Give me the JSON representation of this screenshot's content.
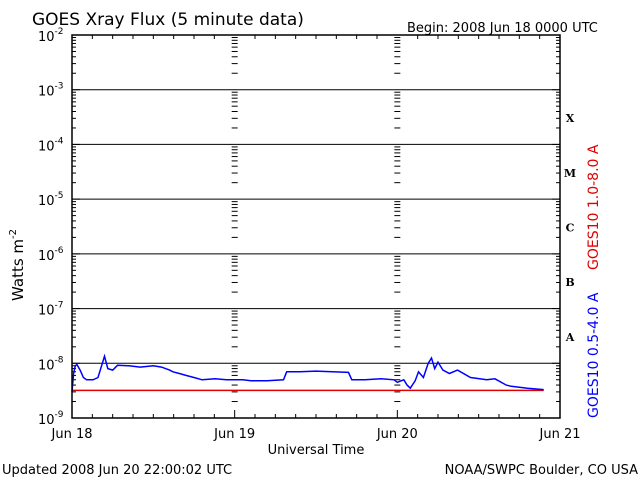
{
  "header": {
    "title": "GOES Xray Flux (5 minute data)",
    "begin": "Begin:  2008 Jun 18 0000 UTC"
  },
  "footer": {
    "updated": "Updated 2008 Jun 20 22:00:02 UTC",
    "credit": "NOAA/SWPC Boulder, CO USA"
  },
  "colors": {
    "long_channel": "#e00000",
    "short_channel": "#0000ff",
    "grid": "#000000"
  },
  "chart_data": {
    "type": "line",
    "title": "GOES Xray Flux (5 minute data)",
    "xlabel": "Universal Time",
    "ylabel": "Watts m",
    "ylabel_sup": "-2",
    "y_scale": "log",
    "ylim": [
      1e-09,
      0.01
    ],
    "xlim": [
      0,
      3
    ],
    "x_ticks": [
      {
        "x": 0,
        "label": "Jun 18"
      },
      {
        "x": 1,
        "label": "Jun 19"
      },
      {
        "x": 2,
        "label": "Jun 20"
      },
      {
        "x": 3,
        "label": "Jun 21"
      }
    ],
    "y_ticks": [
      {
        "exp": -2,
        "base": "10",
        "sup": "-2"
      },
      {
        "exp": -3,
        "base": "10",
        "sup": "-3"
      },
      {
        "exp": -4,
        "base": "10",
        "sup": "-4"
      },
      {
        "exp": -5,
        "base": "10",
        "sup": "-5"
      },
      {
        "exp": -6,
        "base": "10",
        "sup": "-6"
      },
      {
        "exp": -7,
        "base": "10",
        "sup": "-7"
      },
      {
        "exp": -8,
        "base": "10",
        "sup": "-8"
      },
      {
        "exp": -9,
        "base": "10",
        "sup": "-9"
      }
    ],
    "flare_classes": [
      {
        "label": "X",
        "exp": -3.5
      },
      {
        "label": "M",
        "exp": -4.5
      },
      {
        "label": "C",
        "exp": -5.5
      },
      {
        "label": "B",
        "exp": -6.5
      },
      {
        "label": "A",
        "exp": -7.5
      }
    ],
    "grid": true,
    "series": [
      {
        "name": "GOES10 1.0-8.0 A",
        "x": [
          0,
          0.95,
          1.0,
          2.0,
          2.9
        ],
        "y": [
          3.2e-09,
          3.2e-09,
          3.2e-09,
          3.2e-09,
          3.2e-09
        ]
      },
      {
        "name": "GOES10 0.5-4.0 A",
        "x": [
          0,
          0.01,
          0.02,
          0.03,
          0.05,
          0.07,
          0.09,
          0.1,
          0.13,
          0.16,
          0.2,
          0.22,
          0.25,
          0.28,
          0.35,
          0.42,
          0.5,
          0.55,
          0.6,
          0.62,
          0.66,
          0.7,
          0.75,
          0.8,
          0.88,
          0.95,
          1.0,
          1.05,
          1.1,
          1.2,
          1.3,
          1.32,
          1.4,
          1.5,
          1.6,
          1.7,
          1.72,
          1.8,
          1.9,
          1.98,
          2.0,
          2.04,
          2.06,
          2.08,
          2.11,
          2.13,
          2.16,
          2.19,
          2.21,
          2.23,
          2.25,
          2.28,
          2.32,
          2.37,
          2.45,
          2.55,
          2.6,
          2.67,
          2.7,
          2.8,
          2.9
        ],
        "y": [
          3e-09,
          6.5e-09,
          9e-09,
          9.5e-09,
          7.5e-09,
          5.5e-09,
          5e-09,
          5e-09,
          5e-09,
          5.5e-09,
          1.35e-08,
          8e-09,
          7.5e-09,
          9.2e-09,
          9e-09,
          8.5e-09,
          9e-09,
          8.5e-09,
          7.5e-09,
          7e-09,
          6.5e-09,
          6e-09,
          5.5e-09,
          5e-09,
          5.2e-09,
          5e-09,
          5e-09,
          5e-09,
          4.8e-09,
          4.8e-09,
          5e-09,
          7e-09,
          7e-09,
          7.2e-09,
          7e-09,
          6.8e-09,
          5e-09,
          5e-09,
          5.2e-09,
          5e-09,
          4.5e-09,
          5e-09,
          4e-09,
          3.5e-09,
          4.8e-09,
          7e-09,
          5.5e-09,
          1e-08,
          1.25e-08,
          8e-09,
          1.05e-08,
          7.5e-09,
          6.5e-09,
          7.5e-09,
          5.5e-09,
          5e-09,
          5.2e-09,
          4e-09,
          3.8e-09,
          3.5e-09,
          3.3e-09
        ]
      }
    ]
  }
}
